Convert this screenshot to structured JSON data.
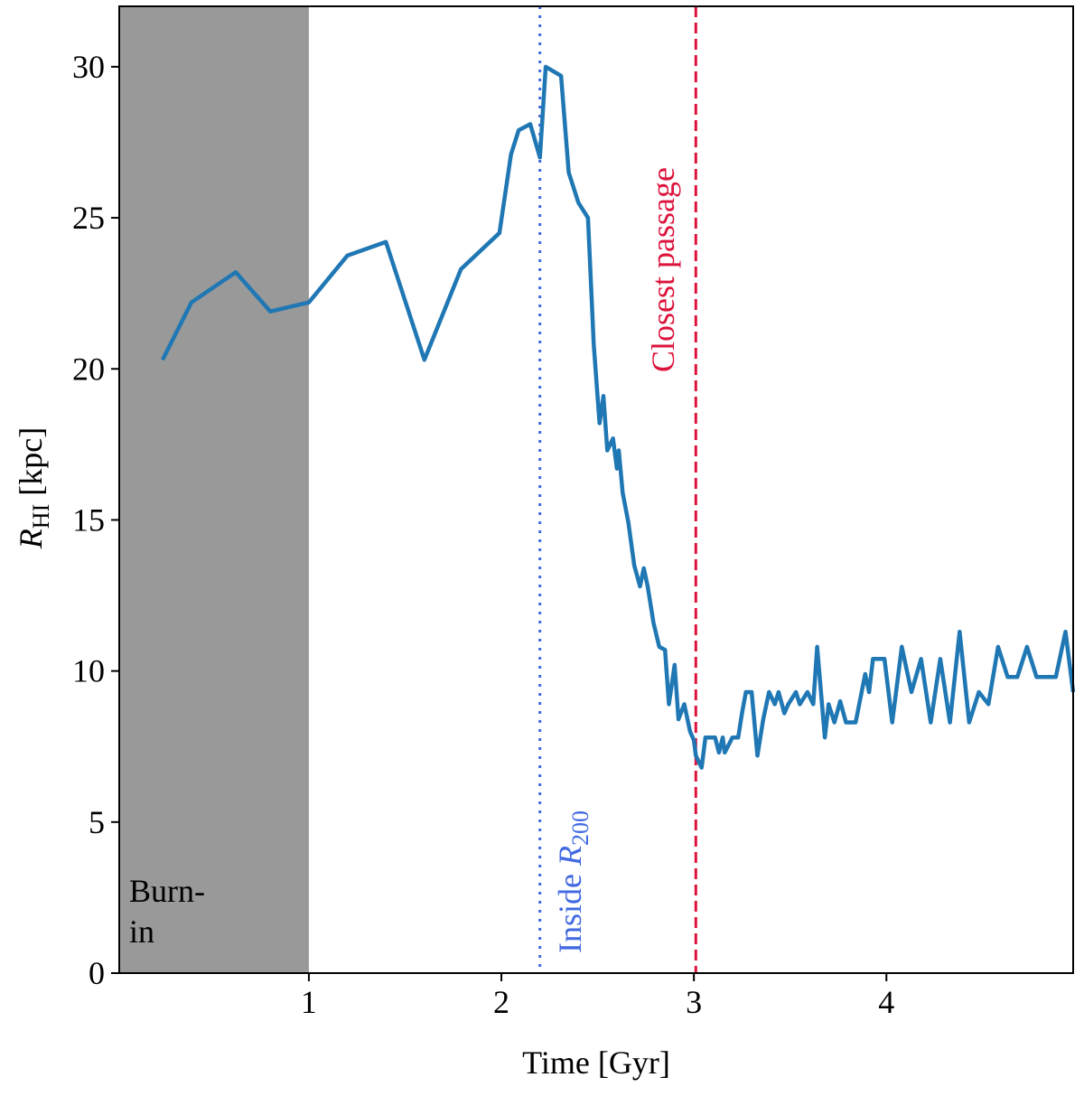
{
  "chart_data": {
    "type": "line",
    "xlabel": "Time [Gyr]",
    "ylabel": {
      "symbol": "R",
      "subscript": "HI",
      "unit": " [kpc]"
    },
    "xlim": [
      0.015,
      4.97
    ],
    "ylim": [
      0,
      32
    ],
    "xticks": [
      1,
      2,
      3,
      4
    ],
    "yticks": [
      0,
      5,
      10,
      15,
      20,
      25,
      30
    ],
    "shade": {
      "xlim": [
        0.015,
        1
      ],
      "color": "#999999",
      "label": [
        "Burn-",
        "in"
      ]
    },
    "vlines": [
      {
        "x": 2.2,
        "color": "#4169e1",
        "style": "dotted",
        "label": {
          "text": "Inside ",
          "symbol": "R",
          "subscript": "200"
        }
      },
      {
        "x": 3.01,
        "color": "#dc143c",
        "style": "dashed",
        "label": {
          "text": "Closest passage"
        }
      }
    ],
    "series": [
      {
        "color": "#1f77b4",
        "x": [
          0.24,
          0.39,
          0.62,
          0.8,
          1.0,
          1.2,
          1.4,
          1.6,
          1.79,
          1.99,
          2.05,
          2.09,
          2.15,
          2.2,
          2.23,
          2.31,
          2.35,
          2.4,
          2.45,
          2.48,
          2.51,
          2.53,
          2.55,
          2.58,
          2.6,
          2.61,
          2.63,
          2.66,
          2.69,
          2.72,
          2.74,
          2.76,
          2.79,
          2.82,
          2.85,
          2.87,
          2.9,
          2.92,
          2.95,
          2.98,
          3.0,
          3.01,
          3.04,
          3.06,
          3.11,
          3.13,
          3.15,
          3.16,
          3.2,
          3.23,
          3.25,
          3.27,
          3.3,
          3.33,
          3.36,
          3.39,
          3.42,
          3.44,
          3.47,
          3.49,
          3.53,
          3.55,
          3.59,
          3.62,
          3.64,
          3.68,
          3.7,
          3.73,
          3.76,
          3.79,
          3.84,
          3.89,
          3.91,
          3.93,
          3.99,
          4.03,
          4.08,
          4.13,
          4.18,
          4.23,
          4.28,
          4.33,
          4.38,
          4.43,
          4.48,
          4.53,
          4.58,
          4.63,
          4.68,
          4.73,
          4.78,
          4.88,
          4.93,
          4.97
        ],
        "values": [
          20.3,
          22.2,
          23.2,
          21.9,
          22.2,
          23.75,
          24.2,
          20.3,
          23.3,
          24.5,
          27.1,
          27.9,
          28.1,
          27.0,
          30.0,
          29.7,
          26.5,
          25.5,
          25.0,
          20.8,
          18.2,
          19.1,
          17.3,
          17.7,
          16.7,
          17.3,
          15.9,
          14.9,
          13.5,
          12.8,
          13.4,
          12.8,
          11.6,
          10.8,
          10.7,
          8.9,
          10.2,
          8.4,
          8.9,
          8.0,
          7.7,
          7.2,
          6.8,
          7.8,
          7.8,
          7.3,
          7.8,
          7.3,
          7.8,
          7.8,
          8.6,
          9.3,
          9.3,
          7.2,
          8.4,
          9.3,
          8.9,
          9.3,
          8.6,
          8.9,
          9.3,
          8.9,
          9.3,
          8.9,
          10.8,
          7.8,
          8.9,
          8.3,
          9.0,
          8.3,
          8.3,
          9.9,
          9.3,
          10.4,
          10.4,
          8.3,
          10.8,
          9.3,
          10.4,
          8.3,
          10.4,
          8.3,
          11.3,
          8.3,
          9.3,
          8.9,
          10.8,
          9.8,
          9.8,
          10.8,
          9.8,
          9.8,
          11.3,
          9.3
        ]
      }
    ]
  }
}
